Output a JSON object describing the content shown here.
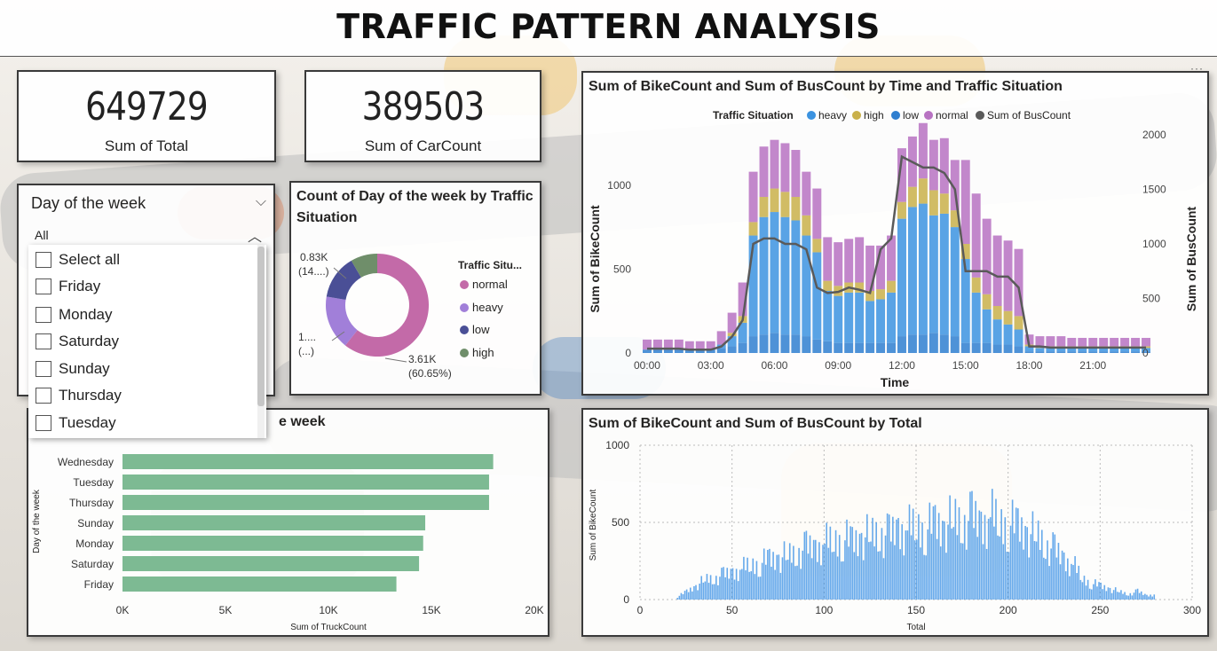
{
  "title": "TRAFFIC PATTERN ANALYSIS",
  "colors": {
    "heavy": "#3c93e0",
    "high": "#c9b04a",
    "low": "#2f7fd0",
    "normal": "#b772c2",
    "bus_line": "#5a5a5a",
    "truck_bar": "#6fb387",
    "total_hist": "#4b9ae8",
    "donut_normal": "#c36aa8",
    "donut_heavy": "#a17fd9",
    "donut_low": "#4a4f96",
    "donut_high": "#6f8e6a"
  },
  "kpis": [
    {
      "value": "649729",
      "label": "Sum of Total"
    },
    {
      "value": "389503",
      "label": "Sum of CarCount"
    }
  ],
  "slicer": {
    "title": "Day of the week",
    "selected": "All",
    "options": [
      "Select all",
      "Friday",
      "Monday",
      "Saturday",
      "Sunday",
      "Thursday",
      "Tuesday"
    ]
  },
  "donut": {
    "title": "Count of Day of the week by Traffic Situation",
    "legend_title": "Traffic Situ...",
    "legend": [
      "normal",
      "heavy",
      "low",
      "high"
    ],
    "labels": {
      "top_value": "0.83K",
      "top_pct": "(14....)",
      "left_value": "1....",
      "left_pct": "(...)",
      "bottom_value": "3.61K",
      "bottom_pct": "(60.65%)"
    },
    "chart_data": {
      "type": "pie",
      "categories": [
        "normal",
        "heavy",
        "low",
        "high"
      ],
      "values": [
        3610,
        1010,
        830,
        500
      ]
    }
  },
  "time_chart": {
    "title": "Sum of BikeCount and Sum of BusCount by Time and Traffic Situation",
    "legend_title": "Traffic Situation",
    "legend": [
      "heavy",
      "high",
      "low",
      "normal",
      "Sum of BusCount"
    ],
    "xlabel": "Time",
    "ylabel_left": "Sum of BikeCount",
    "ylabel_right": "Sum of BusCount",
    "x_ticks": [
      "00:00",
      "03:00",
      "06:00",
      "09:00",
      "12:00",
      "15:00",
      "18:00",
      "21:00"
    ],
    "y_ticks_left": [
      "0",
      "500",
      "1000"
    ],
    "y_ticks_right": [
      "0",
      "500",
      "1000",
      "1500",
      "2000"
    ],
    "chart_data": {
      "type": "bar",
      "x": [
        "00:00",
        "00:30",
        "01:00",
        "01:30",
        "02:00",
        "02:30",
        "03:00",
        "03:30",
        "04:00",
        "04:30",
        "05:00",
        "05:30",
        "06:00",
        "06:30",
        "07:00",
        "07:30",
        "08:00",
        "08:30",
        "09:00",
        "09:30",
        "10:00",
        "10:30",
        "11:00",
        "11:30",
        "12:00",
        "12:30",
        "13:00",
        "13:30",
        "14:00",
        "14:30",
        "15:00",
        "15:30",
        "16:00",
        "16:30",
        "17:00",
        "17:30",
        "18:00",
        "18:30",
        "19:00",
        "19:30",
        "20:00",
        "20:30",
        "21:00",
        "21:30",
        "22:00",
        "22:30",
        "23:00",
        "23:30"
      ],
      "series": [
        {
          "name": "heavy",
          "values": [
            0,
            0,
            0,
            0,
            0,
            0,
            0,
            20,
            60,
            120,
            600,
            700,
            720,
            700,
            680,
            600,
            520,
            300,
            280,
            300,
            300,
            250,
            260,
            300,
            700,
            760,
            780,
            700,
            720,
            650,
            500,
            300,
            200,
            150,
            120,
            100,
            30,
            20,
            20,
            20,
            20,
            20,
            20,
            20,
            20,
            20,
            20,
            20
          ]
        },
        {
          "name": "high",
          "values": [
            0,
            0,
            0,
            0,
            0,
            0,
            0,
            0,
            20,
            40,
            80,
            120,
            140,
            150,
            140,
            120,
            80,
            60,
            60,
            60,
            60,
            60,
            60,
            70,
            100,
            120,
            150,
            150,
            120,
            100,
            90,
            90,
            90,
            80,
            80,
            80,
            10,
            10,
            10,
            10,
            10,
            10,
            10,
            10,
            10,
            10,
            10,
            10
          ]
        },
        {
          "name": "low",
          "values": [
            20,
            20,
            20,
            20,
            20,
            20,
            20,
            30,
            40,
            60,
            100,
            110,
            120,
            110,
            110,
            100,
            80,
            70,
            60,
            60,
            60,
            60,
            60,
            60,
            100,
            110,
            110,
            120,
            110,
            100,
            60,
            60,
            60,
            50,
            50,
            40,
            10,
            10,
            10,
            10,
            10,
            10,
            10,
            10,
            10,
            10,
            10,
            10
          ]
        },
        {
          "name": "normal",
          "values": [
            60,
            60,
            60,
            60,
            50,
            50,
            50,
            80,
            120,
            200,
            300,
            300,
            290,
            290,
            280,
            260,
            300,
            260,
            260,
            260,
            270,
            270,
            260,
            270,
            320,
            300,
            330,
            300,
            330,
            300,
            500,
            500,
            450,
            420,
            420,
            400,
            60,
            60,
            60,
            60,
            50,
            50,
            50,
            50,
            50,
            50,
            50,
            50
          ]
        },
        {
          "name": "Sum of BusCount",
          "values": [
            40,
            40,
            40,
            40,
            30,
            30,
            30,
            60,
            150,
            300,
            1000,
            1050,
            1050,
            1000,
            1000,
            950,
            600,
            550,
            560,
            600,
            580,
            550,
            950,
            1050,
            1800,
            1750,
            1700,
            1700,
            1650,
            1500,
            750,
            750,
            750,
            700,
            700,
            600,
            60,
            60,
            50,
            50,
            50,
            50,
            50,
            50,
            50,
            50,
            50,
            50
          ]
        }
      ],
      "ylim_left": [
        0,
        1300
      ],
      "ylim_right": [
        0,
        2000
      ]
    }
  },
  "truck_chart": {
    "title_visible": "e week",
    "ylabel": "Day of the week",
    "xlabel": "Sum of TruckCount",
    "x_ticks": [
      "0K",
      "5K",
      "10K",
      "15K",
      "20K"
    ],
    "chart_data": {
      "type": "bar",
      "categories": [
        "Wednesday",
        "Tuesday",
        "Thursday",
        "Sunday",
        "Monday",
        "Saturday",
        "Friday"
      ],
      "values": [
        18000,
        17800,
        17800,
        14700,
        14600,
        14400,
        13300
      ],
      "xlim": [
        0,
        20000
      ]
    }
  },
  "total_chart": {
    "title": "Sum of BikeCount and Sum of BusCount by Total",
    "xlabel": "Total",
    "ylabel": "Sum of BikeCount",
    "x_ticks": [
      "0",
      "50",
      "100",
      "150",
      "200",
      "250",
      "300"
    ],
    "y_ticks": [
      "0",
      "500",
      "1000"
    ],
    "chart_data": {
      "type": "bar",
      "x_range": [
        0,
        300
      ],
      "ylim": [
        0,
        1000
      ],
      "description_values": {
        "x": [
          20,
          25,
          30,
          35,
          40,
          45,
          50,
          55,
          60,
          65,
          70,
          75,
          80,
          85,
          90,
          95,
          100,
          105,
          110,
          115,
          120,
          125,
          130,
          135,
          140,
          145,
          150,
          155,
          160,
          165,
          170,
          175,
          180,
          185,
          190,
          195,
          200,
          205,
          210,
          215,
          220,
          225,
          230,
          235,
          240,
          245,
          250,
          255,
          260,
          265,
          270,
          275,
          280
        ],
        "y": [
          20,
          60,
          100,
          150,
          160,
          180,
          200,
          230,
          260,
          270,
          300,
          310,
          330,
          350,
          380,
          380,
          420,
          440,
          450,
          430,
          460,
          480,
          500,
          470,
          520,
          520,
          550,
          520,
          560,
          540,
          600,
          580,
          600,
          560,
          620,
          580,
          560,
          540,
          500,
          480,
          420,
          360,
          300,
          260,
          160,
          120,
          100,
          80,
          60,
          40,
          60,
          30,
          40
        ]
      }
    }
  }
}
